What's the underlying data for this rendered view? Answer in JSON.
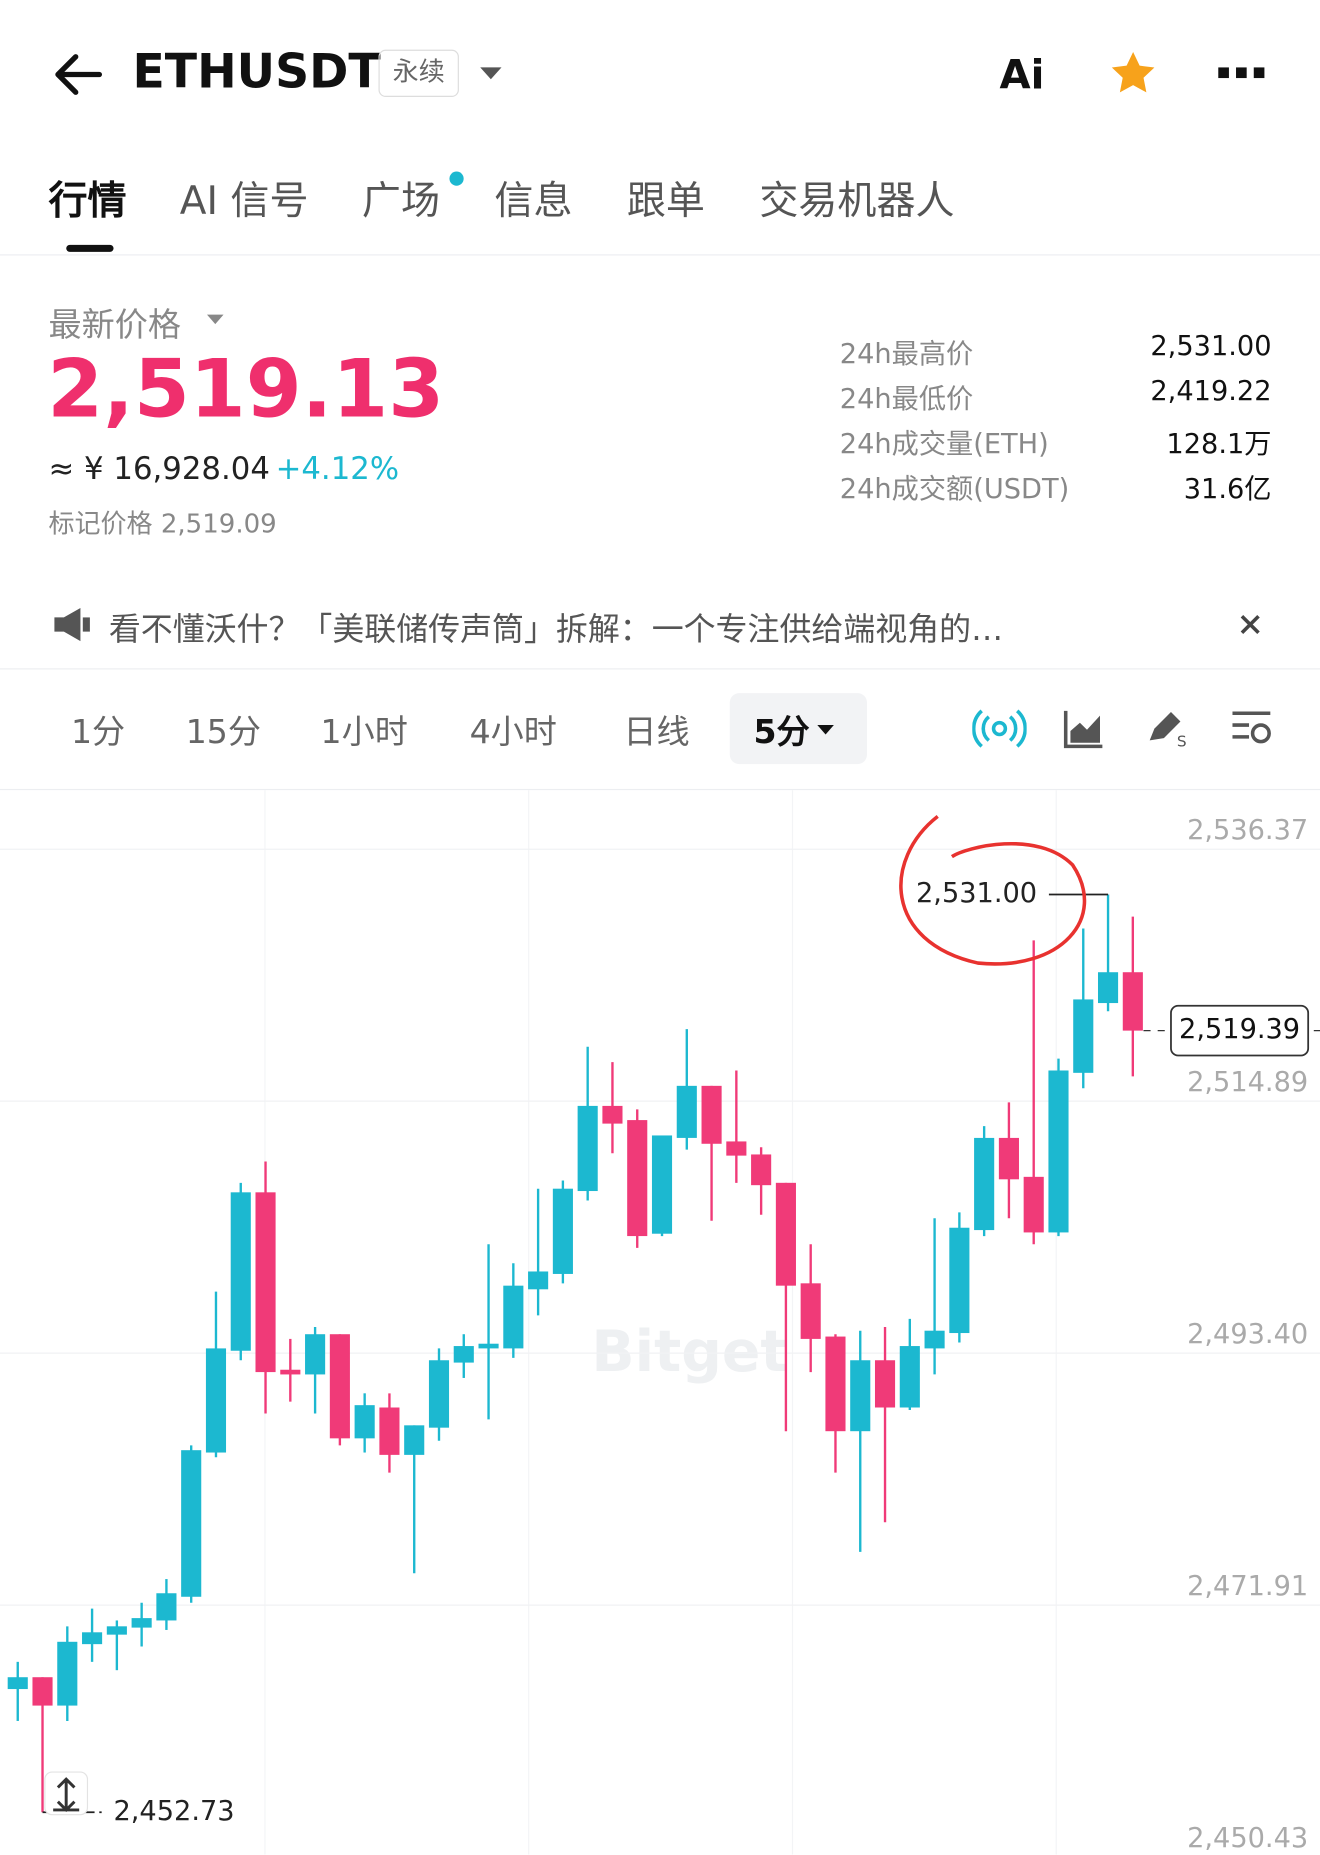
{
  "header": {
    "symbol": "ETHUSDT",
    "badge": "永续",
    "ai": "Ai"
  },
  "tabs": [
    "行情",
    "AI 信号",
    "广场",
    "信息",
    "跟单",
    "交易机器人"
  ],
  "price": {
    "label": "最新价格",
    "last": "2,519.13",
    "cny": "≈ ¥ 16,928.04",
    "change": "+4.12%",
    "mark": "标记价格 2,519.09"
  },
  "stats": [
    {
      "label": "24h最高价",
      "value": "2,531.00"
    },
    {
      "label": "24h最低价",
      "value": "2,419.22"
    },
    {
      "label": "24h成交量(ETH)",
      "value": "128.1万"
    },
    {
      "label": "24h成交额(USDT)",
      "value": "31.6亿"
    }
  ],
  "notice": "看不懂沃什？「美联储传声筒」拆解：一个专注供给端视角的…",
  "intervals": [
    "1分",
    "15分",
    "1小时",
    "4小时",
    "日线",
    "5分"
  ],
  "chart_data": {
    "type": "candlestick",
    "watermark": "Bitget",
    "up_color": "#1cb8d0",
    "down_color": "#f03a78",
    "open": [
      2463.24,
      2464.25,
      2461.83,
      2467.07,
      2467.88,
      2468.48,
      2469.09,
      2471.11,
      2483.41,
      2492.09,
      2505.6,
      2490.47,
      2490.07,
      2493.5,
      2484.62,
      2487.25,
      2483.21,
      2485.53,
      2491.08,
      2492.29,
      2492.29,
      2497.33,
      2498.64,
      2505.71,
      2512.97,
      2511.76,
      2502.07,
      2510.24,
      2514.68,
      2509.94,
      2508.83,
      2506.41,
      2497.84,
      2493.3,
      2485.23,
      2491.28,
      2487.25,
      2492.29,
      2493.6,
      2502.38,
      2510.24,
      2506.92,
      2502.18,
      2515.79,
      2521.74,
      2524.37
    ],
    "high": [
      2465.56,
      2464.25,
      2468.59,
      2470.1,
      2469.09,
      2470.6,
      2472.62,
      2484.02,
      2497.13,
      2506.41,
      2508.23,
      2493.1,
      2494.11,
      2493.5,
      2488.46,
      2488.46,
      2485.73,
      2492.29,
      2493.5,
      2501.17,
      2499.55,
      2505.91,
      2506.61,
      2518.01,
      2516.7,
      2512.67,
      2510.45,
      2519.52,
      2514.68,
      2515.99,
      2509.44,
      2506.41,
      2501.17,
      2493.5,
      2493.8,
      2494.11,
      2494.81,
      2503.39,
      2503.89,
      2511.25,
      2513.27,
      2527.09,
      2517.0,
      2528.1,
      2531.0,
      2529.11
    ],
    "low": [
      2460.52,
      2452.73,
      2460.52,
      2465.56,
      2464.85,
      2466.87,
      2468.28,
      2470.6,
      2483.01,
      2491.28,
      2486.74,
      2487.75,
      2486.74,
      2484.02,
      2483.41,
      2481.7,
      2473.12,
      2484.42,
      2489.77,
      2486.24,
      2491.48,
      2495.11,
      2497.84,
      2504.9,
      2508.93,
      2500.86,
      2501.87,
      2509.24,
      2503.18,
      2506.41,
      2503.69,
      2485.23,
      2490.27,
      2481.7,
      2474.94,
      2477.46,
      2487.04,
      2490.07,
      2492.79,
      2501.87,
      2503.39,
      2501.17,
      2501.87,
      2514.48,
      2521.04,
      2515.49
    ],
    "close": [
      2464.25,
      2461.83,
      2467.27,
      2468.08,
      2468.59,
      2469.29,
      2471.41,
      2483.61,
      2492.29,
      2505.6,
      2490.27,
      2490.07,
      2493.5,
      2484.62,
      2487.45,
      2483.21,
      2485.73,
      2491.28,
      2492.49,
      2492.69,
      2497.64,
      2498.85,
      2505.91,
      2512.97,
      2511.46,
      2501.87,
      2510.45,
      2514.68,
      2509.74,
      2508.73,
      2506.21,
      2497.64,
      2493.1,
      2485.23,
      2491.28,
      2487.25,
      2492.49,
      2493.8,
      2502.58,
      2510.24,
      2506.71,
      2502.18,
      2515.99,
      2522.05,
      2524.37,
      2519.39
    ],
    "ylim": [
      2449.12,
      2539.9
    ],
    "yticks": [
      {
        "value": 2536.37,
        "label": "2,536.37"
      },
      {
        "value": 2514.89,
        "label": "2,514.89"
      },
      {
        "value": 2493.4,
        "label": "2,493.40"
      },
      {
        "value": 2471.91,
        "label": "2,471.91"
      },
      {
        "value": 2450.43,
        "label": "2,450.43"
      }
    ],
    "high_marker": {
      "value": 2531.0,
      "label": "2,531.00"
    },
    "low_marker": {
      "value": 2452.73,
      "label": "2,452.73"
    },
    "last_price": {
      "value": 2519.39,
      "label": "2,519.39"
    }
  }
}
